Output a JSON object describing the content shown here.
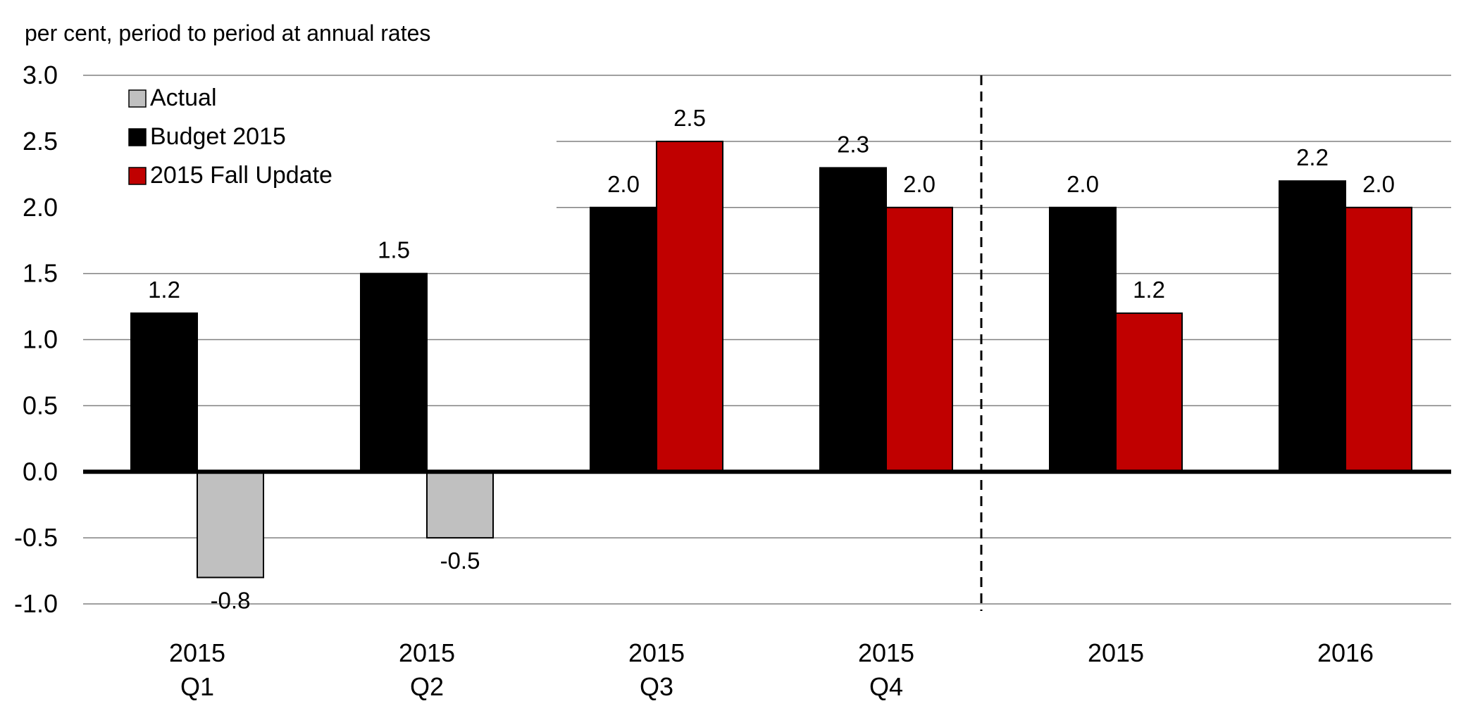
{
  "chart_data": {
    "type": "bar",
    "ylabel": "per cent, period to period at annual rates",
    "ylim": [
      -1.0,
      3.0
    ],
    "yticks": [
      "3.0",
      "2.5",
      "2.0",
      "1.5",
      "1.0",
      "0.5",
      "0.0",
      "-0.5",
      "-1.0"
    ],
    "grid": true,
    "legend_position": "top-left",
    "categories": [
      [
        "2015",
        "Q1"
      ],
      [
        "2015",
        "Q2"
      ],
      [
        "2015",
        "Q3"
      ],
      [
        "2015",
        "Q4"
      ],
      [
        "2015"
      ],
      [
        "2016"
      ]
    ],
    "divider_after_category_index": 3,
    "series": [
      {
        "name": "Actual",
        "color": "#c0c0c0",
        "values": [
          -0.8,
          -0.5,
          null,
          null,
          null,
          null
        ],
        "labels": [
          "-0.8",
          "-0.5",
          null,
          null,
          null,
          null
        ]
      },
      {
        "name": "Budget 2015",
        "color": "#000000",
        "values": [
          1.2,
          1.5,
          2.0,
          2.3,
          2.0,
          2.2
        ],
        "labels": [
          "1.2",
          "1.5",
          "2.0",
          "2.3",
          "2.0",
          "2.2"
        ]
      },
      {
        "name": "2015 Fall Update",
        "color": "#c00000",
        "values": [
          null,
          null,
          2.5,
          2.0,
          1.2,
          2.0
        ],
        "labels": [
          null,
          null,
          "2.5",
          "2.0",
          "1.2",
          "2.0"
        ]
      }
    ]
  }
}
